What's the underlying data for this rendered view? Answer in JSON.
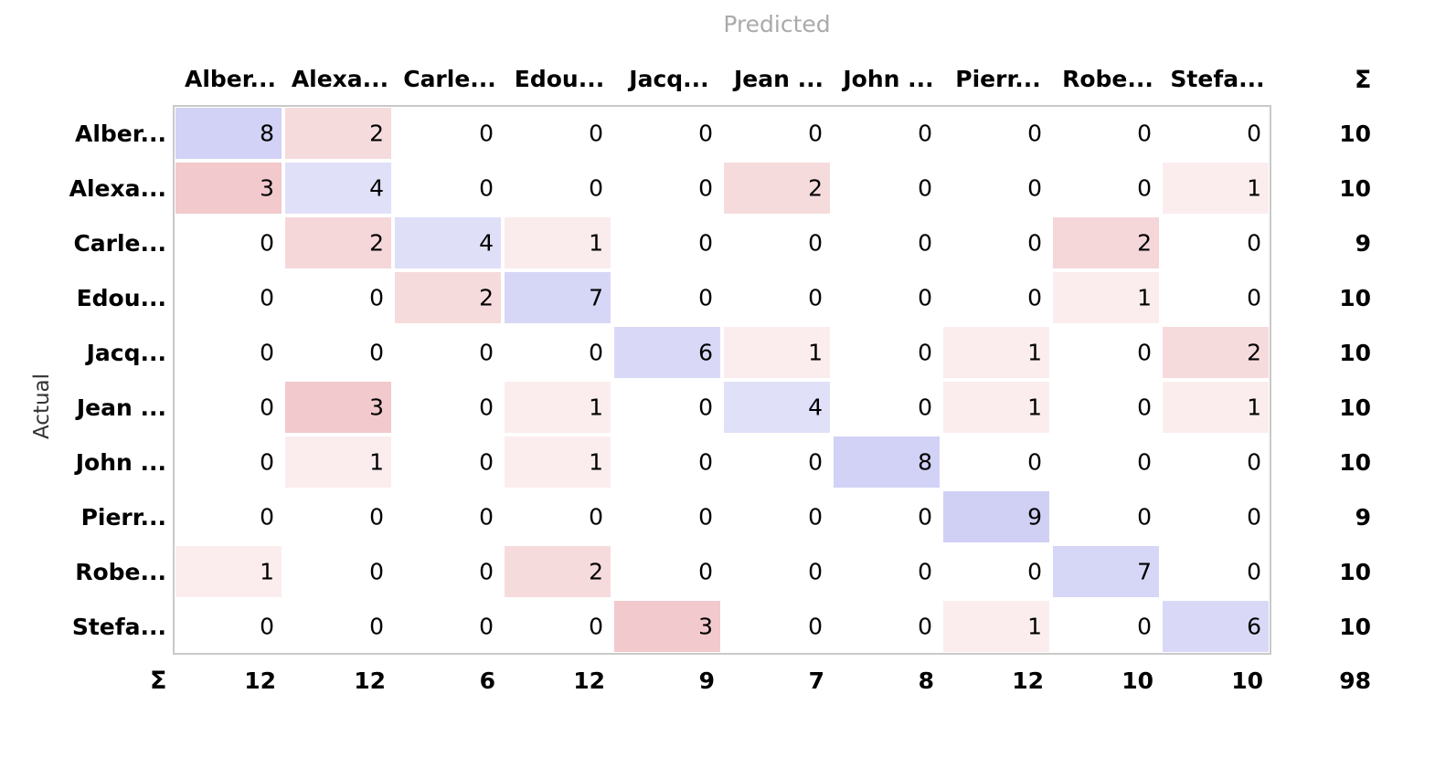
{
  "axis_labels": {
    "predicted": "Predicted",
    "actual": "Actual"
  },
  "sum_symbol": "Σ",
  "colors": {
    "correct": "#d0d0f5",
    "incorrect": "#f2c8cc"
  },
  "chart_data": {
    "type": "heatmap",
    "title": "",
    "xlabel": "Predicted",
    "ylabel": "Actual",
    "col_labels": [
      "Alber...",
      "Alexa...",
      "Carle...",
      "Edou...",
      "Jacq...",
      "Jean ...",
      "John ...",
      "Pierr...",
      "Robe...",
      "Stefa..."
    ],
    "row_labels": [
      "Alber...",
      "Alexa...",
      "Carle...",
      "Edou...",
      "Jacq...",
      "Jean ...",
      "John ...",
      "Pierr...",
      "Robe...",
      "Stefa..."
    ],
    "matrix": [
      [
        8,
        2,
        0,
        0,
        0,
        0,
        0,
        0,
        0,
        0
      ],
      [
        3,
        4,
        0,
        0,
        0,
        2,
        0,
        0,
        0,
        1
      ],
      [
        0,
        2,
        4,
        1,
        0,
        0,
        0,
        0,
        2,
        0
      ],
      [
        0,
        0,
        2,
        7,
        0,
        0,
        0,
        0,
        1,
        0
      ],
      [
        0,
        0,
        0,
        0,
        6,
        1,
        0,
        1,
        0,
        2
      ],
      [
        0,
        3,
        0,
        1,
        0,
        4,
        0,
        1,
        0,
        1
      ],
      [
        0,
        1,
        0,
        1,
        0,
        0,
        8,
        0,
        0,
        0
      ],
      [
        0,
        0,
        0,
        0,
        0,
        0,
        0,
        9,
        0,
        0
      ],
      [
        1,
        0,
        0,
        2,
        0,
        0,
        0,
        0,
        7,
        0
      ],
      [
        0,
        0,
        0,
        0,
        3,
        0,
        0,
        1,
        0,
        6
      ]
    ],
    "row_totals": [
      10,
      10,
      9,
      10,
      10,
      10,
      10,
      9,
      10,
      10
    ],
    "col_totals": [
      12,
      12,
      6,
      12,
      9,
      7,
      8,
      12,
      10,
      10
    ],
    "grand_total": 98
  }
}
